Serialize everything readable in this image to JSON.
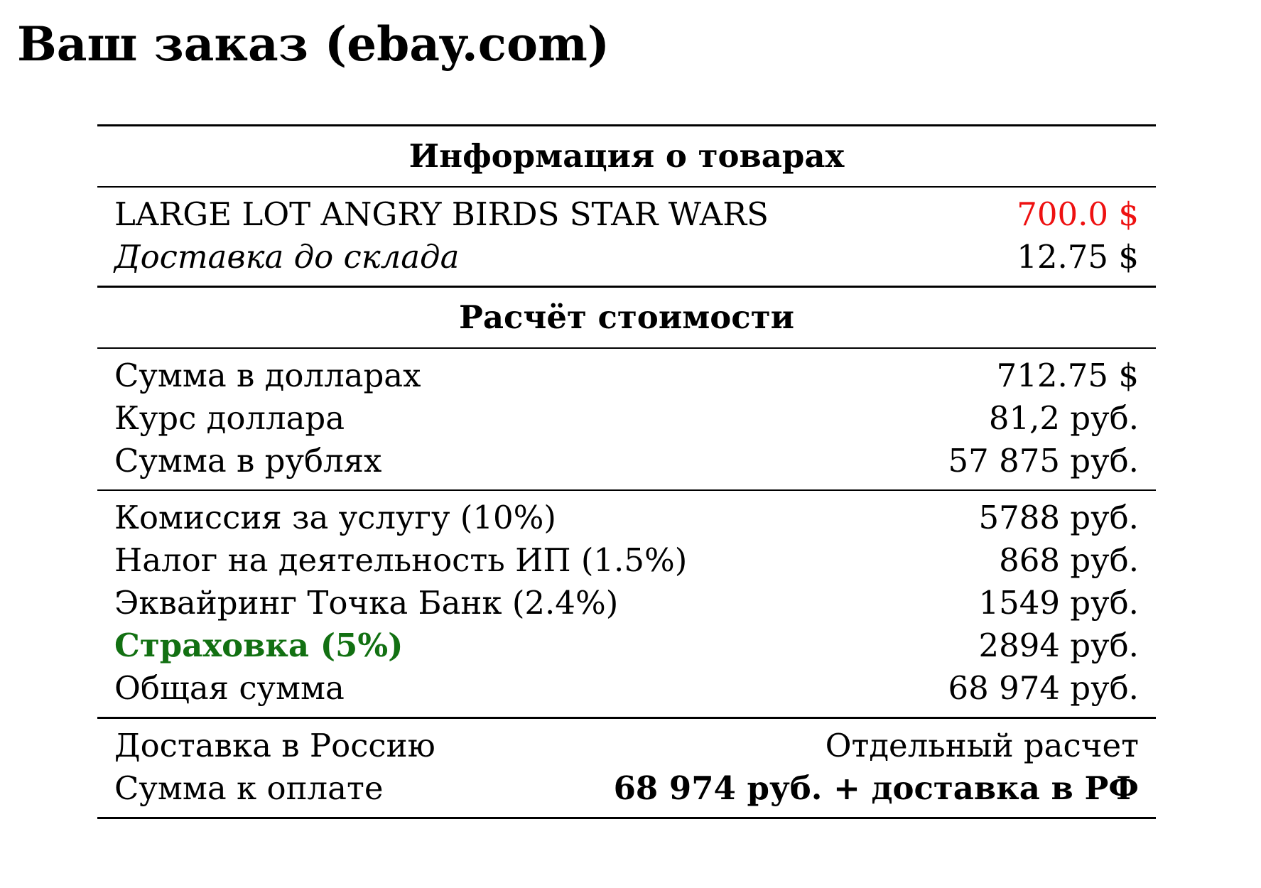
{
  "title": "Ваш заказ (ebay.com)",
  "colors": {
    "price_red": "#ee1111",
    "insurance_green": "#127012"
  },
  "products": {
    "header": "Информация о товарах",
    "item_name": "LARGE LOT ANGRY BIRDS STAR WARS",
    "item_price": "700.0 $",
    "warehouse_shipping_label": "Доставка до склада",
    "warehouse_shipping_value": "12.75 $"
  },
  "calculation": {
    "header": "Расчёт стоимости",
    "conversion": [
      {
        "label": "Сумма в долларах",
        "value": "712.75 $"
      },
      {
        "label": "Курс доллара",
        "value": "81,2 руб."
      },
      {
        "label": "Сумма в рублях",
        "value": "57 875 руб."
      }
    ],
    "fees": [
      {
        "label": "Комиссия за услугу (10%)",
        "value": "5788 руб."
      },
      {
        "label": "Налог на деятельность ИП (1.5%)",
        "value": "868 руб."
      },
      {
        "label": "Эквайринг Точка Банк (2.4%)",
        "value": "1549 руб."
      },
      {
        "label": "Страховка (5%)",
        "value": "2894 руб."
      },
      {
        "label": "Общая сумма",
        "value": "68 974 руб."
      }
    ]
  },
  "summary": {
    "delivery_label": "Доставка в Россию",
    "delivery_value": "Отдельный расчет",
    "payable_label": "Сумма к оплате",
    "payable_value": "68 974 руб. + доставка в РФ"
  }
}
